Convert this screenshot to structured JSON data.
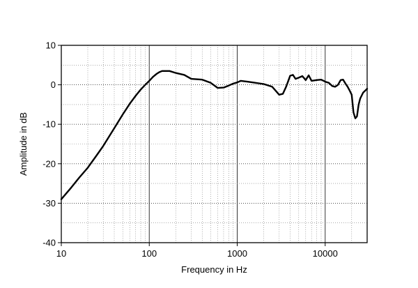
{
  "chart_data": {
    "type": "line",
    "title": "",
    "xlabel": "Frequency in Hz",
    "ylabel": "Amplitude in dB",
    "xscale": "log",
    "xlim": [
      10,
      30000
    ],
    "ylim": [
      -40,
      10
    ],
    "grid": true,
    "legend": "none",
    "x_ticks": [
      {
        "value": 10,
        "label": "10"
      },
      {
        "value": 100,
        "label": "100"
      },
      {
        "value": 1000,
        "label": "1000"
      },
      {
        "value": 10000,
        "label": "10000"
      }
    ],
    "y_ticks": [
      {
        "value": 10,
        "label": "10"
      },
      {
        "value": 0,
        "label": "0"
      },
      {
        "value": -10,
        "label": "-10"
      },
      {
        "value": -20,
        "label": "-20"
      },
      {
        "value": -30,
        "label": "-30"
      },
      {
        "value": -40,
        "label": "-40"
      }
    ],
    "series": [
      {
        "color": "#000000",
        "x": [
          10,
          13,
          16,
          20,
          25,
          30,
          40,
          50,
          60,
          70,
          80,
          90,
          100,
          110,
          120,
          130,
          140,
          150,
          170,
          200,
          250,
          300,
          400,
          500,
          600,
          700,
          800,
          900,
          1000,
          1100,
          1300,
          1500,
          2000,
          2500,
          3000,
          3300,
          3600,
          4000,
          4300,
          4600,
          5000,
          5500,
          6000,
          6500,
          7000,
          8000,
          9000,
          10000,
          11000,
          12000,
          13000,
          14000,
          15000,
          16000,
          17000,
          18000,
          19000,
          20000,
          21000,
          22000,
          23000,
          24000,
          25000,
          27000,
          30000
        ],
        "y": [
          -29,
          -26,
          -23.5,
          -21,
          -18,
          -15.5,
          -11,
          -7.5,
          -4.8,
          -2.8,
          -1.2,
          0,
          1,
          2,
          2.7,
          3.2,
          3.5,
          3.5,
          3.5,
          3,
          2.5,
          1.5,
          1.3,
          0.5,
          -0.8,
          -0.7,
          -0.2,
          0.3,
          0.6,
          1,
          0.8,
          0.6,
          0.2,
          -0.5,
          -2.5,
          -2.3,
          -0.5,
          2.3,
          2.5,
          1.5,
          1.8,
          2.2,
          1.2,
          2.4,
          1,
          1.2,
          1.3,
          0.8,
          0.5,
          -0.3,
          -0.5,
          0,
          1.2,
          1.3,
          0.3,
          -0.5,
          -1.5,
          -2.5,
          -7,
          -8.5,
          -8,
          -5,
          -3.5,
          -2,
          -1
        ]
      }
    ]
  }
}
